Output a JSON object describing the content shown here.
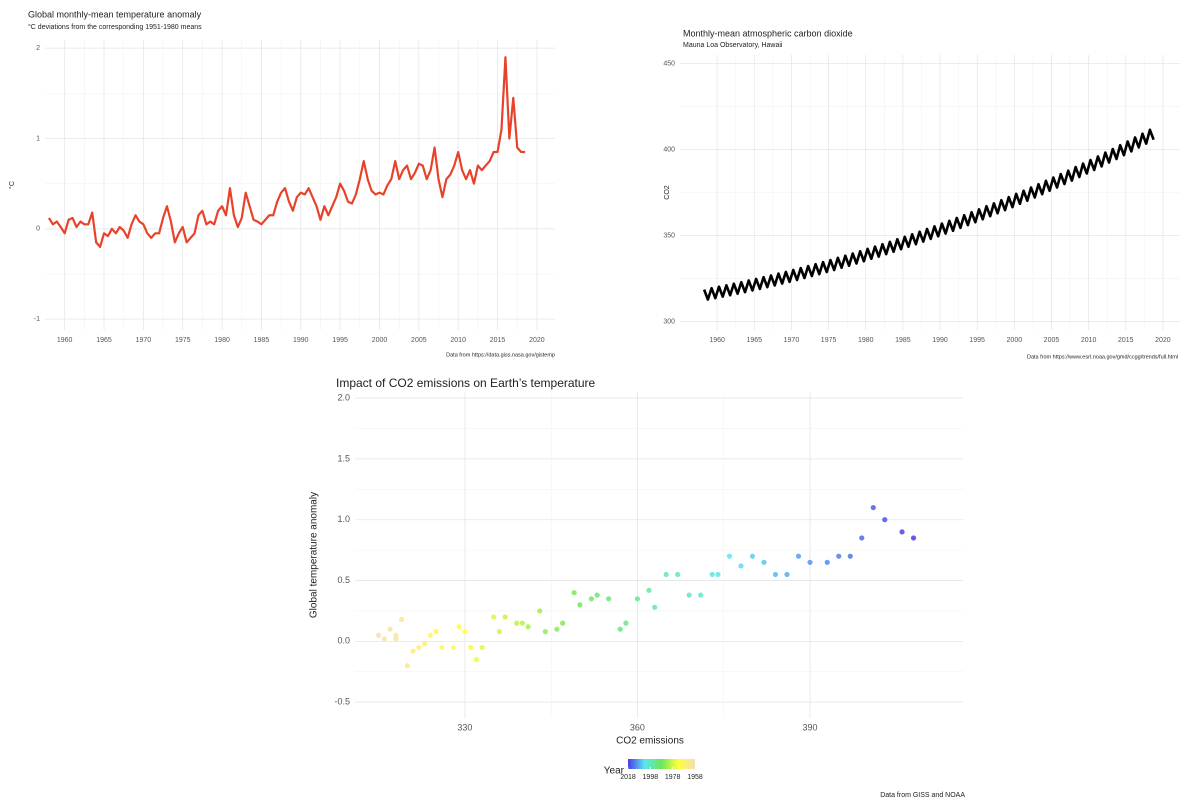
{
  "chart_data": [
    {
      "type": "line",
      "title": "Global monthly-mean temperature anomaly",
      "subtitle": "°C deviations from the corresponding 1951-1980 means",
      "y_label": "°C",
      "caption": "Data from https://data.giss.nasa.gov/gistemp",
      "color": "#e8432a",
      "grid": true,
      "xlim": [
        1957.5,
        2022.3
      ],
      "ylim": [
        -1.12,
        2.09
      ],
      "xticks": [
        1960,
        1965,
        1970,
        1975,
        1980,
        1985,
        1990,
        1995,
        2000,
        2005,
        2010,
        2015,
        2020
      ],
      "yticks": [
        -1,
        0,
        1,
        2
      ],
      "x": [
        1958,
        1958.5,
        1959,
        1959.5,
        1960,
        1960.5,
        1961,
        1961.5,
        1962,
        1962.5,
        1963,
        1963.5,
        1964,
        1964.5,
        1965,
        1965.5,
        1966,
        1966.5,
        1967,
        1967.5,
        1968,
        1968.5,
        1969,
        1969.5,
        1970,
        1970.5,
        1971,
        1971.5,
        1972,
        1972.5,
        1973,
        1973.5,
        1974,
        1974.5,
        1975,
        1975.5,
        1976,
        1976.5,
        1977,
        1977.5,
        1978,
        1978.5,
        1979,
        1979.5,
        1980,
        1980.5,
        1981,
        1981.5,
        1982,
        1982.5,
        1983,
        1983.5,
        1984,
        1984.5,
        1985,
        1985.5,
        1986,
        1986.5,
        1987,
        1987.5,
        1988,
        1988.5,
        1989,
        1989.5,
        1990,
        1990.5,
        1991,
        1991.5,
        1992,
        1992.5,
        1993,
        1993.5,
        1994,
        1994.5,
        1995,
        1995.5,
        1996,
        1996.5,
        1997,
        1997.5,
        1998,
        1998.5,
        1999,
        1999.5,
        2000,
        2000.5,
        2001,
        2001.5,
        2002,
        2002.5,
        2003,
        2003.5,
        2004,
        2004.5,
        2005,
        2005.5,
        2006,
        2006.5,
        2007,
        2007.5,
        2008,
        2008.5,
        2009,
        2009.5,
        2010,
        2010.5,
        2011,
        2011.5,
        2012,
        2012.5,
        2013,
        2013.5,
        2014,
        2014.5,
        2015,
        2015.5,
        2016,
        2016.5,
        2017,
        2017.5,
        2018,
        2018.5
      ],
      "values": [
        0.12,
        0.05,
        0.08,
        0.02,
        -0.05,
        0.1,
        0.12,
        0.02,
        0.08,
        0.05,
        0.05,
        0.18,
        -0.15,
        -0.2,
        -0.05,
        -0.08,
        0.0,
        -0.05,
        0.02,
        -0.02,
        -0.1,
        0.05,
        0.15,
        0.08,
        0.05,
        -0.05,
        -0.1,
        -0.05,
        -0.05,
        0.12,
        0.25,
        0.08,
        -0.15,
        -0.05,
        0.02,
        -0.15,
        -0.1,
        -0.05,
        0.15,
        0.2,
        0.05,
        0.08,
        0.05,
        0.2,
        0.25,
        0.15,
        0.45,
        0.15,
        0.02,
        0.12,
        0.4,
        0.25,
        0.1,
        0.08,
        0.05,
        0.1,
        0.15,
        0.15,
        0.3,
        0.4,
        0.45,
        0.3,
        0.2,
        0.35,
        0.4,
        0.38,
        0.45,
        0.35,
        0.25,
        0.1,
        0.25,
        0.15,
        0.25,
        0.35,
        0.5,
        0.42,
        0.3,
        0.28,
        0.38,
        0.55,
        0.75,
        0.55,
        0.42,
        0.38,
        0.4,
        0.38,
        0.48,
        0.55,
        0.75,
        0.55,
        0.65,
        0.7,
        0.55,
        0.62,
        0.72,
        0.7,
        0.55,
        0.65,
        0.9,
        0.55,
        0.35,
        0.55,
        0.6,
        0.7,
        0.85,
        0.65,
        0.55,
        0.65,
        0.5,
        0.7,
        0.65,
        0.7,
        0.75,
        0.85,
        0.85,
        1.1,
        1.9,
        1.0,
        1.45,
        0.9,
        0.85,
        0.85
      ]
    },
    {
      "type": "line",
      "title": "Monthly-mean atmospheric carbon dioxide",
      "subtitle": "Mauna Loa Observatory, Hawaii",
      "y_label": "CO2",
      "caption": "Data from https://www.esrl.noaa.gov/gmd/ccgg/trends/full.html",
      "color": "#000000",
      "grid": true,
      "xlim": [
        1955.0,
        2022.3
      ],
      "ylim": [
        295,
        455
      ],
      "xticks": [
        1960,
        1965,
        1970,
        1975,
        1980,
        1985,
        1990,
        1995,
        2000,
        2005,
        2010,
        2015,
        2020
      ],
      "yticks": [
        300,
        350,
        400,
        450
      ],
      "x": [
        1958.25,
        1958.75,
        1959.25,
        1959.75,
        1960.25,
        1960.75,
        1961.25,
        1961.75,
        1962.25,
        1962.75,
        1963.25,
        1963.75,
        1964.25,
        1964.75,
        1965.25,
        1965.75,
        1966.25,
        1966.75,
        1967.25,
        1967.75,
        1968.25,
        1968.75,
        1969.25,
        1969.75,
        1970.25,
        1970.75,
        1971.25,
        1971.75,
        1972.25,
        1972.75,
        1973.25,
        1973.75,
        1974.25,
        1974.75,
        1975.25,
        1975.75,
        1976.25,
        1976.75,
        1977.25,
        1977.75,
        1978.25,
        1978.75,
        1979.25,
        1979.75,
        1980.25,
        1980.75,
        1981.25,
        1981.75,
        1982.25,
        1982.75,
        1983.25,
        1983.75,
        1984.25,
        1984.75,
        1985.25,
        1985.75,
        1986.25,
        1986.75,
        1987.25,
        1987.75,
        1988.25,
        1988.75,
        1989.25,
        1989.75,
        1990.25,
        1990.75,
        1991.25,
        1991.75,
        1992.25,
        1992.75,
        1993.25,
        1993.75,
        1994.25,
        1994.75,
        1995.25,
        1995.75,
        1996.25,
        1996.75,
        1997.25,
        1997.75,
        1998.25,
        1998.75,
        1999.25,
        1999.75,
        2000.25,
        2000.75,
        2001.25,
        2001.75,
        2002.25,
        2002.75,
        2003.25,
        2003.75,
        2004.25,
        2004.75,
        2005.25,
        2005.75,
        2006.25,
        2006.75,
        2007.25,
        2007.75,
        2008.25,
        2008.75,
        2009.25,
        2009.75,
        2010.25,
        2010.75,
        2011.25,
        2011.75,
        2012.25,
        2012.75,
        2013.25,
        2013.75,
        2014.25,
        2014.75,
        2015.25,
        2015.75,
        2016.25,
        2016.75,
        2017.25,
        2017.75,
        2018.25,
        2018.75
      ],
      "values": [
        318.5,
        312.7,
        319.3,
        313.5,
        320.2,
        314.4,
        321.0,
        315.2,
        321.9,
        316.1,
        322.8,
        317.0,
        323.8,
        318.0,
        324.7,
        318.9,
        325.7,
        319.9,
        326.7,
        320.9,
        327.8,
        322.0,
        328.8,
        323.0,
        329.9,
        324.1,
        331.0,
        325.2,
        332.2,
        326.4,
        333.3,
        327.5,
        334.5,
        328.7,
        335.7,
        329.9,
        337.0,
        331.2,
        338.2,
        332.4,
        339.5,
        333.7,
        340.8,
        335.0,
        342.2,
        336.4,
        343.5,
        337.7,
        344.9,
        339.1,
        346.3,
        340.5,
        347.8,
        342.0,
        349.2,
        343.4,
        350.7,
        344.9,
        352.2,
        346.4,
        353.8,
        348.0,
        355.3,
        349.5,
        356.9,
        351.1,
        358.5,
        352.7,
        360.2,
        354.4,
        361.8,
        356.0,
        363.5,
        357.7,
        365.2,
        359.4,
        367.0,
        361.2,
        368.7,
        362.9,
        370.5,
        364.7,
        372.3,
        366.5,
        374.2,
        368.4,
        376.0,
        370.2,
        377.9,
        372.1,
        379.8,
        374.0,
        381.8,
        376.0,
        383.7,
        377.9,
        385.7,
        379.9,
        387.7,
        381.9,
        389.8,
        384.0,
        391.8,
        386.0,
        393.9,
        388.1,
        396.0,
        390.2,
        398.2,
        392.4,
        400.3,
        394.5,
        402.5,
        396.7,
        404.7,
        398.9,
        407.0,
        401.2,
        409.2,
        403.4,
        411.5,
        405.7
      ]
    },
    {
      "type": "scatter",
      "title": "Impact of CO2 emissions on Earth’s temperature",
      "x_label": "CO2 emissions",
      "y_label": "Global temperature anomaly",
      "caption": "Data from GISS and NOAA",
      "grid": true,
      "xlim": [
        310.9,
        416.6
      ],
      "ylim": [
        -0.63,
        2.05
      ],
      "xticks": [
        330,
        360,
        390
      ],
      "yticks": [
        -0.5,
        {
          "value": 0,
          "label": "0.0"
        },
        0.5,
        {
          "value": 1,
          "label": "1.0"
        },
        1.5,
        {
          "value": 2,
          "label": "2.0"
        }
      ],
      "legend_title": "Year",
      "color_lim": [
        1958,
        2018
      ],
      "legend_ticks": [
        2018,
        1998,
        1978,
        1958
      ],
      "colorscale": [
        "#4b3be6",
        "#5ce6f0",
        "#6ee65a",
        "#ffff3b",
        "#f5deb3"
      ],
      "x": [
        315,
        316,
        317,
        318,
        318,
        319,
        320,
        321,
        322,
        323,
        324,
        325,
        326,
        328,
        329,
        330,
        331,
        332,
        333,
        335,
        336,
        337,
        339,
        340,
        341,
        343,
        344,
        346,
        347,
        349,
        350,
        352,
        353,
        355,
        357,
        358,
        360,
        362,
        363,
        365,
        367,
        369,
        371,
        373,
        374,
        376,
        378,
        380,
        382,
        384,
        386,
        388,
        390,
        393,
        395,
        397,
        399,
        401,
        403,
        406,
        408
      ],
      "values": [
        0.05,
        0.02,
        0.1,
        0.02,
        0.05,
        0.18,
        -0.2,
        -0.08,
        -0.05,
        -0.02,
        0.05,
        0.08,
        -0.05,
        -0.05,
        0.12,
        0.08,
        -0.05,
        -0.15,
        -0.05,
        0.2,
        0.08,
        0.2,
        0.15,
        0.15,
        0.12,
        0.25,
        0.08,
        0.1,
        0.15,
        0.4,
        0.3,
        0.35,
        0.38,
        0.35,
        0.1,
        0.15,
        0.35,
        0.42,
        0.28,
        0.55,
        0.55,
        0.38,
        0.38,
        0.55,
        0.55,
        0.7,
        0.62,
        0.7,
        0.65,
        0.55,
        0.55,
        0.7,
        0.65,
        0.65,
        0.7,
        0.7,
        0.85,
        1.1,
        1.0,
        0.9,
        0.85
      ],
      "color_values": [
        1958,
        1959,
        1960,
        1961,
        1962,
        1963,
        1964,
        1965,
        1966,
        1967,
        1968,
        1969,
        1970,
        1971,
        1972,
        1973,
        1974,
        1975,
        1976,
        1977,
        1978,
        1979,
        1980,
        1981,
        1982,
        1983,
        1984,
        1985,
        1986,
        1987,
        1988,
        1989,
        1990,
        1991,
        1992,
        1993,
        1994,
        1995,
        1996,
        1997,
        1998,
        1999,
        2000,
        2001,
        2002,
        2003,
        2004,
        2005,
        2006,
        2007,
        2008,
        2009,
        2010,
        2011,
        2012,
        2013,
        2014,
        2015,
        2016,
        2017,
        2018
      ]
    }
  ]
}
